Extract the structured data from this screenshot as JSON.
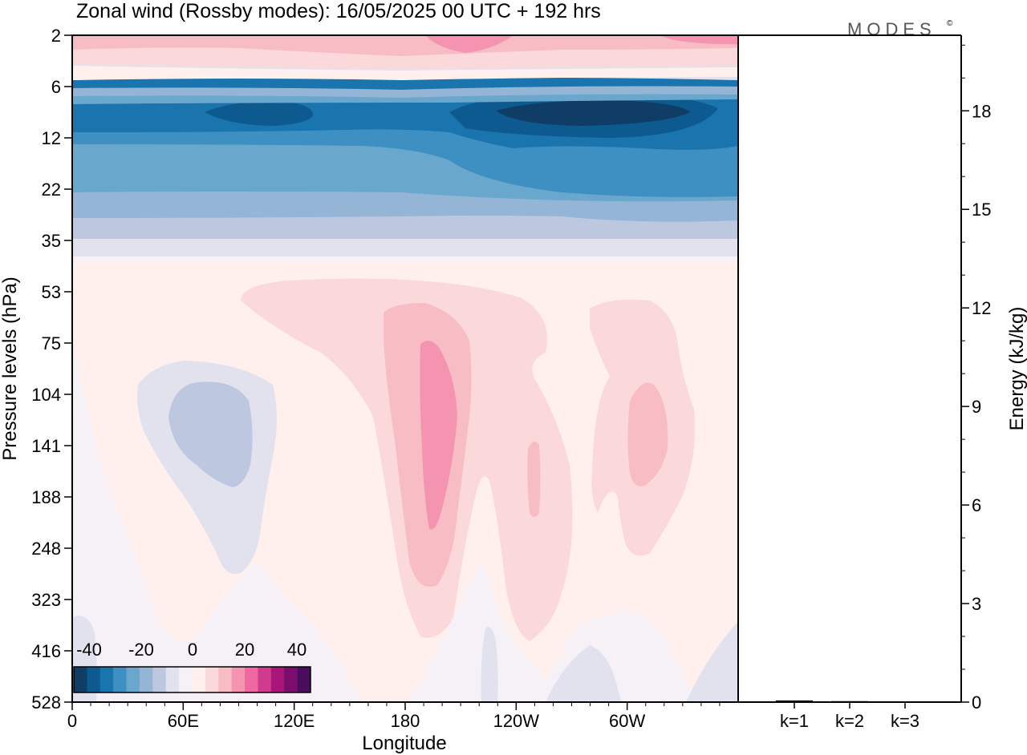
{
  "title": "Zonal wind (Rossby modes):  16/05/2025  00 UTC  + 192 hrs",
  "logo": "MODES",
  "logo_mark": "©",
  "chart_data": [
    {
      "type": "heatmap",
      "xlabel": "Longitude",
      "ylabel": "Pressure levels (hPa)",
      "x_ticks": [
        "0",
        "60E",
        "120E",
        "180",
        "120W",
        "60W"
      ],
      "y_ticks": [
        "2",
        "6",
        "12",
        "22",
        "35",
        "53",
        "75",
        "104",
        "141",
        "188",
        "248",
        "323",
        "416",
        "528"
      ],
      "y_scale": "log (pressure, top = 2 hPa)",
      "colorbar": {
        "tick_labels": [
          "-40",
          "-20",
          "0",
          "20",
          "40"
        ],
        "range": [
          -45,
          45
        ],
        "step": 5,
        "colors": [
          "#0f3d66",
          "#0d5a91",
          "#1a74ad",
          "#3e8fc2",
          "#6aa7cd",
          "#95b5d7",
          "#bec7e0",
          "#e2e2ef",
          "#f5f1f7",
          "#fff0ee",
          "#fbd9da",
          "#f8bcc4",
          "#f594b0",
          "#ef68a2",
          "#d23a8e",
          "#a8167a",
          "#7a0d6e",
          "#4a0c5e"
        ]
      },
      "features": [
        {
          "name": "upper-level easterly band",
          "level_range_hPa": [
            6,
            35
          ],
          "value_min": -40
        },
        {
          "name": "upper westerly strip",
          "level_range_hPa": [
            2,
            4
          ],
          "value_max": 15
        },
        {
          "name": "jet core near 180",
          "center_longitude": "190E",
          "level_range_hPa": [
            75,
            200
          ],
          "value_max": 20
        },
        {
          "name": "jet core near 60W",
          "center_longitude": "60W",
          "level_range_hPa": [
            95,
            190
          ],
          "value_max": 15
        },
        {
          "name": "easterly cell near 90E",
          "center_longitude": "80E",
          "level_range_hPa": [
            90,
            200
          ],
          "value_min": -10
        }
      ]
    },
    {
      "type": "bar",
      "categories": [
        "k=1",
        "k=2",
        "k=3"
      ],
      "values": [
        0.05,
        0.03,
        0.02
      ],
      "ylabel": "Energy (kJ/kg)",
      "y_ticks": [
        "0",
        "3",
        "6",
        "9",
        "12",
        "15",
        "18"
      ],
      "ylim": [
        0,
        20.3
      ]
    }
  ]
}
